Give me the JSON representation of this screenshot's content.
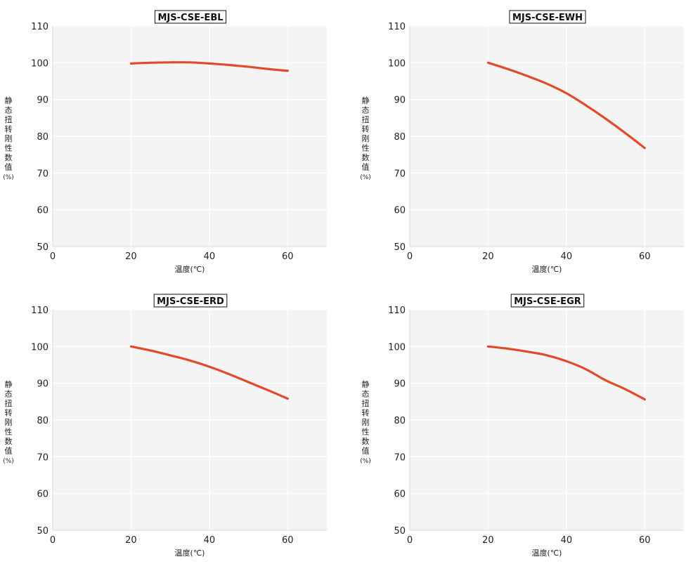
{
  "chart_data": [
    {
      "type": "line",
      "title": "MJS-CSE-EBL",
      "xlabel": "温度(℃)",
      "ylabel": "静态扭转刚性数值(%)",
      "xlim": [
        0,
        70
      ],
      "ylim": [
        50,
        110
      ],
      "xticks": [
        0,
        20,
        40,
        60
      ],
      "yticks": [
        50,
        60,
        70,
        80,
        90,
        100,
        110
      ],
      "grid": true,
      "legend": "none",
      "series": [
        {
          "x": [
            20,
            25,
            30,
            35,
            40,
            45,
            50,
            55,
            60
          ],
          "y": [
            99.8,
            100.0,
            100.1,
            100.1,
            99.8,
            99.4,
            98.9,
            98.3,
            97.8
          ]
        }
      ]
    },
    {
      "type": "line",
      "title": "MJS-CSE-EWH",
      "xlabel": "温度(℃)",
      "ylabel": "静态扭转刚性数值(%)",
      "xlim": [
        0,
        70
      ],
      "ylim": [
        50,
        110
      ],
      "xticks": [
        0,
        20,
        40,
        60
      ],
      "yticks": [
        50,
        60,
        70,
        80,
        90,
        100,
        110
      ],
      "grid": true,
      "legend": "none",
      "series": [
        {
          "x": [
            20,
            25,
            30,
            35,
            40,
            45,
            50,
            55,
            60
          ],
          "y": [
            100.0,
            98.3,
            96.4,
            94.3,
            91.7,
            88.4,
            84.8,
            80.9,
            76.8
          ]
        }
      ]
    },
    {
      "type": "line",
      "title": "MJS-CSE-ERD",
      "xlabel": "温度(℃)",
      "ylabel": "静态扭转刚性数值(%)",
      "xlim": [
        0,
        70
      ],
      "ylim": [
        50,
        110
      ],
      "xticks": [
        0,
        20,
        40,
        60
      ],
      "yticks": [
        50,
        60,
        70,
        80,
        90,
        100,
        110
      ],
      "grid": true,
      "legend": "none",
      "series": [
        {
          "x": [
            20,
            25,
            30,
            35,
            40,
            45,
            50,
            55,
            60
          ],
          "y": [
            100.0,
            98.9,
            97.6,
            96.2,
            94.5,
            92.5,
            90.3,
            88.1,
            85.8
          ]
        }
      ]
    },
    {
      "type": "line",
      "title": "MJS-CSE-EGR",
      "xlabel": "温度(℃)",
      "ylabel": "静态扭转刚性数值(%)",
      "xlim": [
        0,
        70
      ],
      "ylim": [
        50,
        110
      ],
      "xticks": [
        0,
        20,
        40,
        60
      ],
      "yticks": [
        50,
        60,
        70,
        80,
        90,
        100,
        110
      ],
      "grid": true,
      "legend": "none",
      "series": [
        {
          "x": [
            20,
            25,
            30,
            35,
            40,
            45,
            50,
            55,
            60
          ],
          "y": [
            100.0,
            99.4,
            98.6,
            97.6,
            96.0,
            93.8,
            90.8,
            88.4,
            85.6
          ]
        }
      ]
    }
  ],
  "colors": {
    "series_line": "#e34a2a",
    "plot_background": "#f3f4f3",
    "gridline": "#ffffff"
  }
}
